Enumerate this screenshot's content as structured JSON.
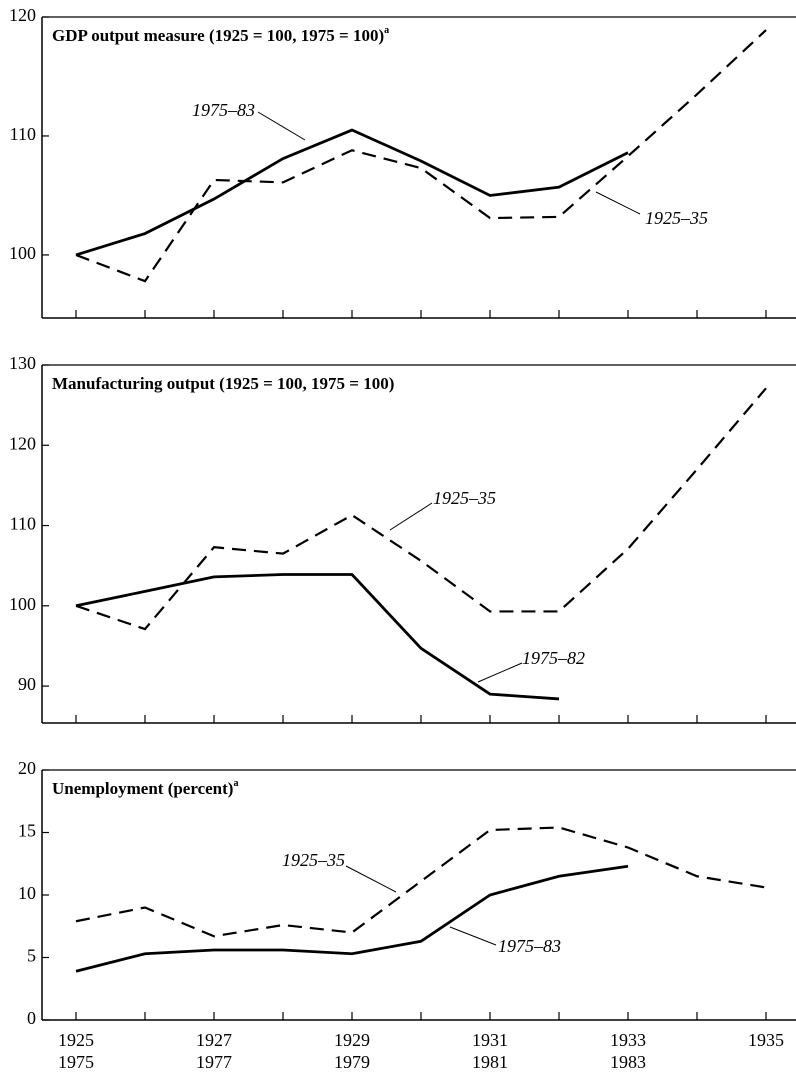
{
  "chart_data": [
    {
      "type": "line",
      "title": "GDP output measure (1925 = 100, 1975 = 100)",
      "title_note": "a",
      "ylim": [
        94.7,
        120
      ],
      "yticks": [
        100,
        110,
        120
      ],
      "series": [
        {
          "name": "1925–35",
          "color": "#000000",
          "style": "dashed",
          "values": [
            100,
            97.8,
            106.3,
            106.1,
            108.8,
            107.3,
            103.1,
            103.2,
            108.3,
            113.5,
            118.9
          ]
        },
        {
          "name": "1975–83",
          "color": "#000000",
          "style": "solid",
          "values": [
            100,
            101.8,
            104.7,
            108.1,
            110.5,
            107.9,
            105.0,
            105.7,
            108.6,
            null,
            null
          ]
        }
      ]
    },
    {
      "type": "line",
      "title": "Manufacturing output (1925 = 100, 1975 = 100)",
      "ylim": [
        85.4,
        130
      ],
      "yticks": [
        90,
        100,
        110,
        120,
        130
      ],
      "series": [
        {
          "name": "1925–35",
          "color": "#000000",
          "style": "dashed",
          "values": [
            100,
            97.1,
            107.3,
            106.5,
            111.3,
            105.6,
            99.3,
            99.3,
            107.1,
            117,
            127.1
          ]
        },
        {
          "name": "1975–82",
          "color": "#000000",
          "style": "solid",
          "values": [
            100,
            101.8,
            103.6,
            103.9,
            103.9,
            94.7,
            89.0,
            88.4,
            null,
            null,
            null
          ]
        }
      ]
    },
    {
      "type": "line",
      "title": "Unemployment (percent)",
      "title_note": "a",
      "ylim": [
        0,
        20
      ],
      "yticks": [
        0,
        5,
        10,
        15,
        20
      ],
      "categories": [
        "1925",
        null,
        "1927",
        null,
        "1929",
        null,
        "1931",
        null,
        "1933",
        null,
        "1935"
      ],
      "categories2": [
        "1975",
        null,
        "1977",
        null,
        "1979",
        null,
        "1981",
        null,
        "1983",
        null,
        null
      ],
      "series": [
        {
          "name": "1925–35",
          "color": "#000000",
          "style": "dashed",
          "values": [
            7.9,
            9.0,
            6.7,
            7.6,
            7.0,
            11.1,
            15.2,
            15.4,
            13.8,
            11.5,
            10.6
          ]
        },
        {
          "name": "1975–83",
          "color": "#000000",
          "style": "solid",
          "values": [
            3.9,
            5.3,
            5.6,
            5.6,
            5.3,
            6.3,
            10.0,
            11.5,
            12.3,
            null,
            null
          ]
        }
      ]
    }
  ]
}
